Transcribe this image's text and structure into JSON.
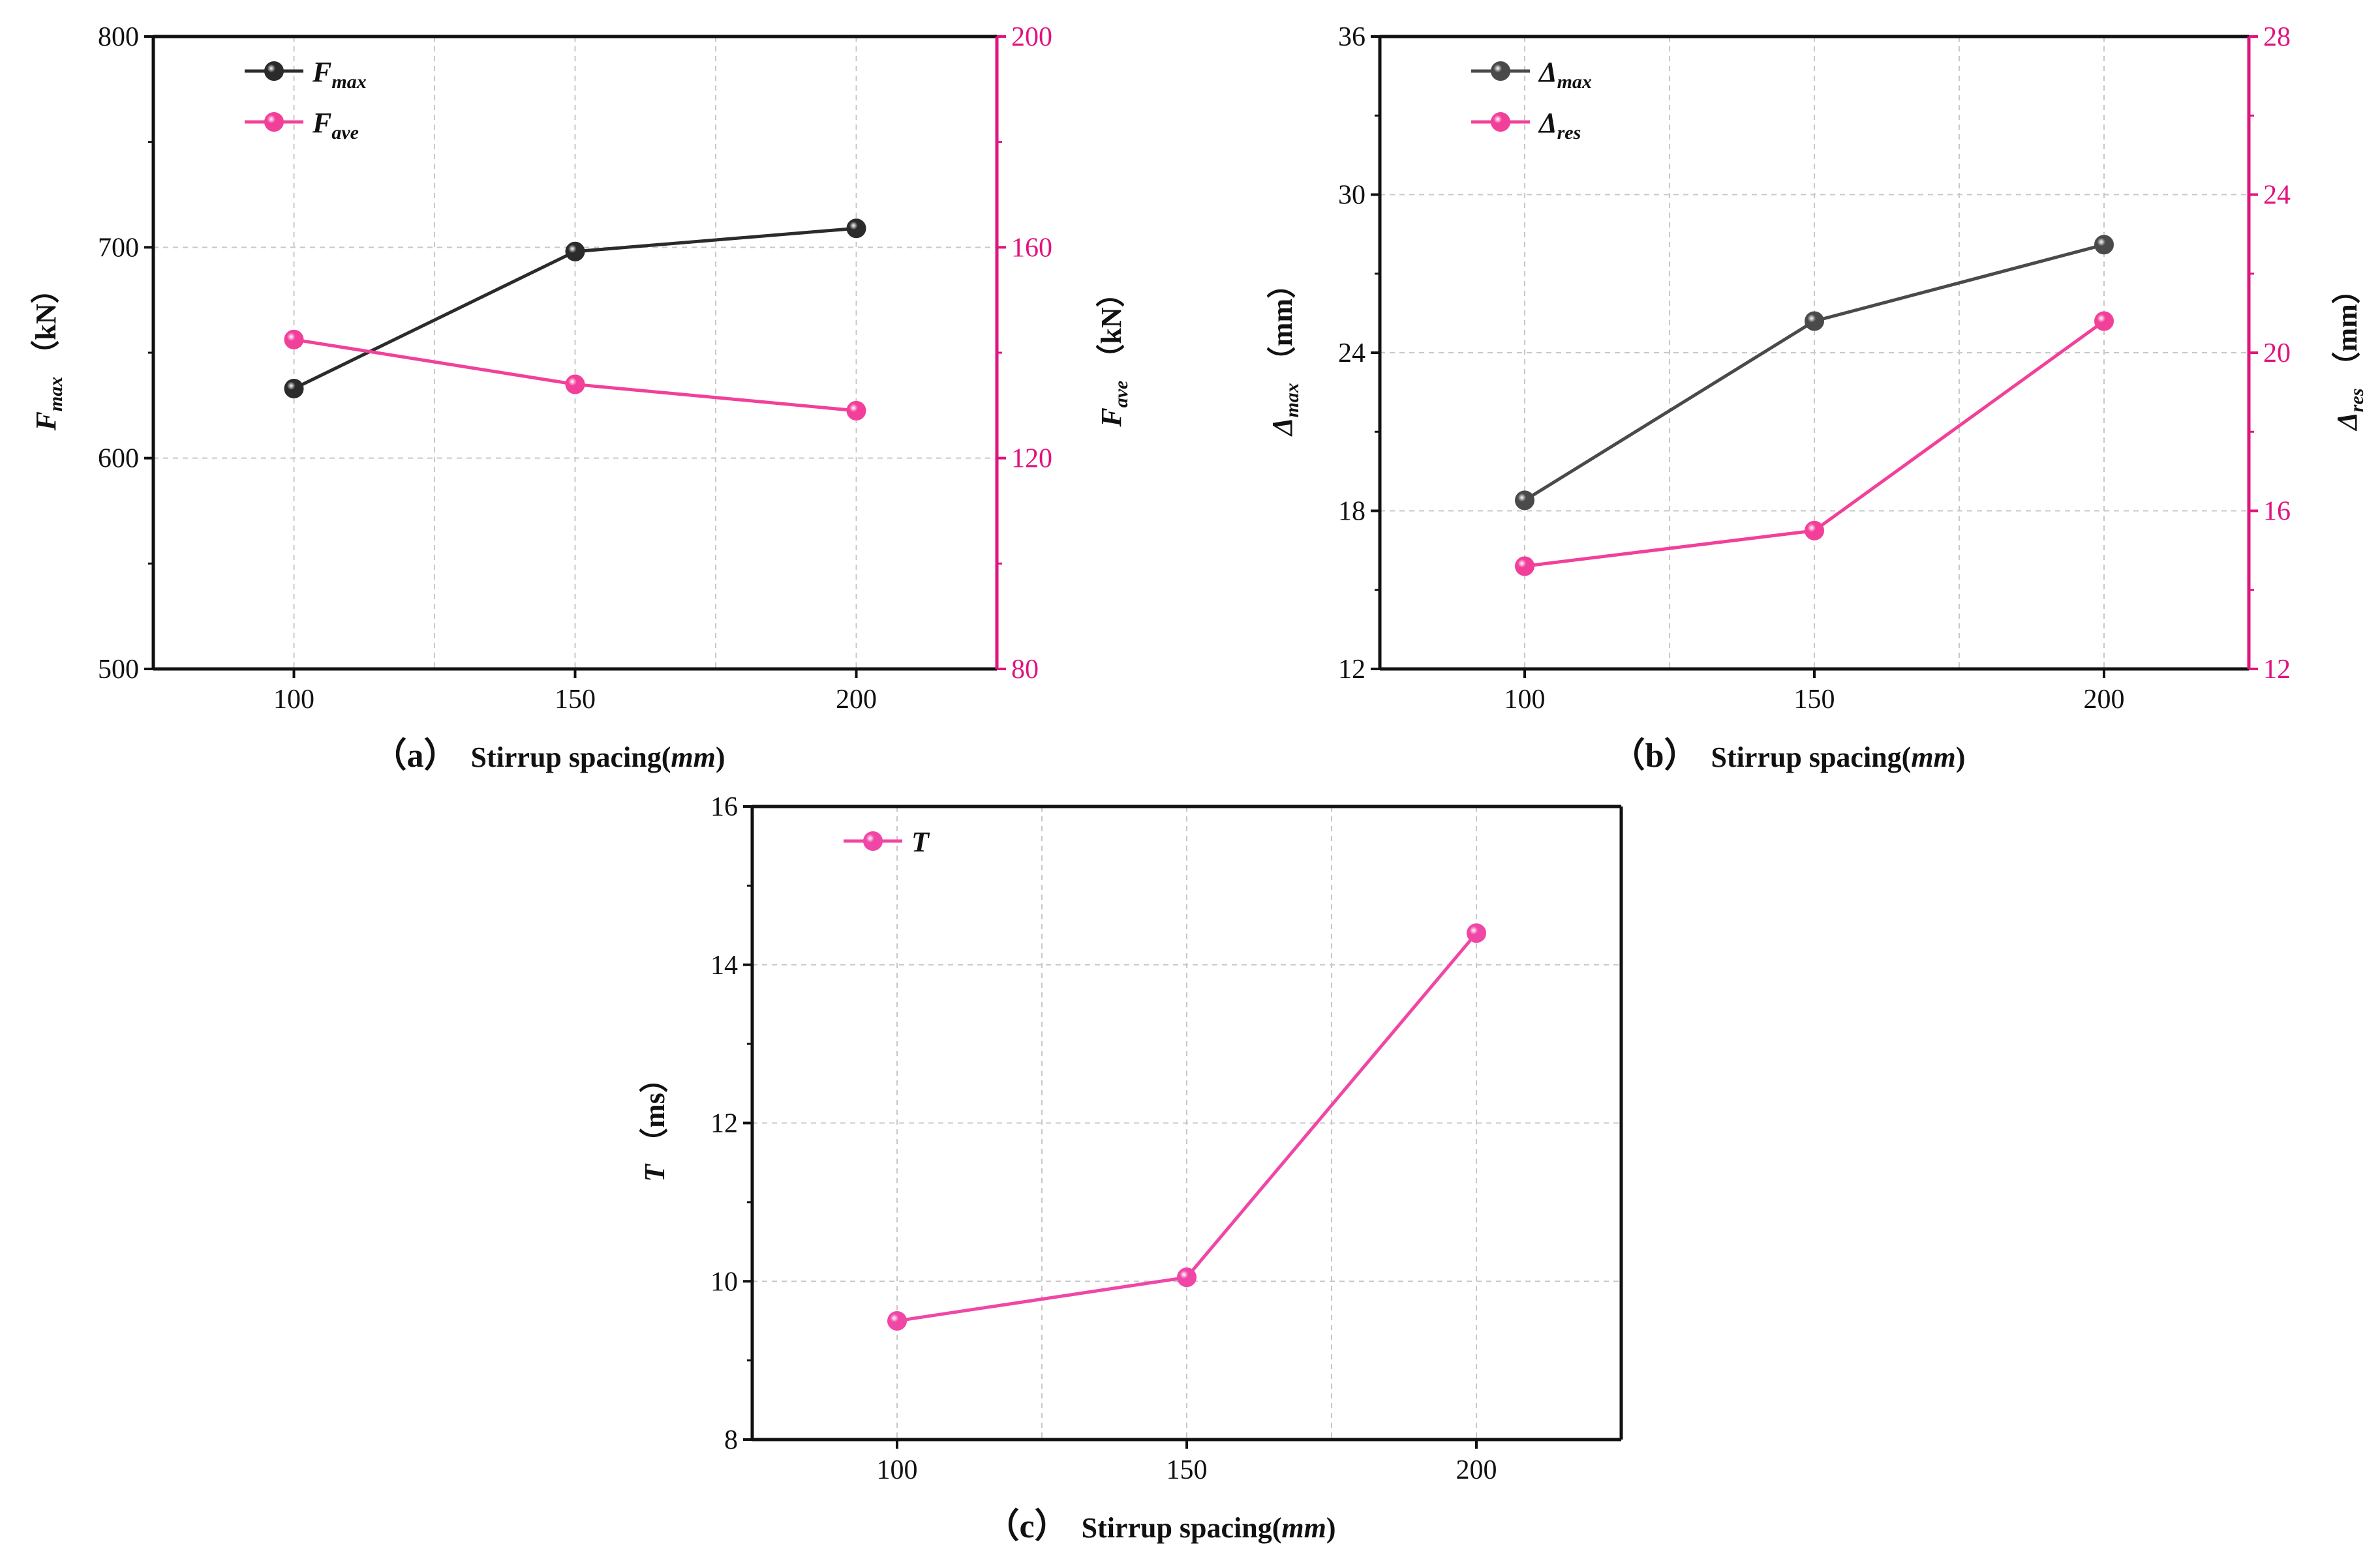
{
  "colors": {
    "black_series": "#2b2b2b",
    "gray_series": "#4a4a4a",
    "pink_axis": "#e0147e",
    "pink_series": "#f2409a",
    "pink_c": "#f046a6"
  },
  "chart_data": [
    {
      "id": "a",
      "type": "line",
      "caption_label": "（a）",
      "xlabel": "Stirrup spacing",
      "xlabel_unit": "mm",
      "x": [
        100,
        150,
        200
      ],
      "xlim": [
        75,
        225
      ],
      "xticks": [
        100,
        150,
        200
      ],
      "ylim": [
        500,
        800
      ],
      "yticks": [
        500,
        600,
        700,
        800
      ],
      "ylabel_main": "F",
      "ylabel_sub": "max",
      "ylabel_unit": "（kN）",
      "y2lim": [
        80,
        200
      ],
      "y2ticks": [
        80,
        120,
        160,
        200
      ],
      "y2label_main": "F",
      "y2label_sub": "ave",
      "y2label_unit": "（kN）",
      "grid": true,
      "legend_position": "top-left",
      "series": [
        {
          "name_main": "F",
          "name_sub": "max",
          "axis": "left",
          "color": "#2b2b2b",
          "values": [
            633,
            698,
            709
          ]
        },
        {
          "name_main": "F",
          "name_sub": "ave",
          "axis": "right",
          "color": "#f2409a",
          "values": [
            142.5,
            134,
            129
          ]
        }
      ]
    },
    {
      "id": "b",
      "type": "line",
      "caption_label": "（b）",
      "xlabel": "Stirrup spacing",
      "xlabel_unit": "mm",
      "x": [
        100,
        150,
        200
      ],
      "xlim": [
        75,
        225
      ],
      "xticks": [
        100,
        150,
        200
      ],
      "ylim": [
        12,
        36
      ],
      "yticks": [
        12,
        18,
        24,
        30,
        36
      ],
      "ylabel_main": "Δ",
      "ylabel_sub": "max",
      "ylabel_unit": "（mm）",
      "y2lim": [
        12,
        28
      ],
      "y2ticks": [
        12,
        16,
        20,
        24,
        28
      ],
      "y2label_main": "Δ",
      "y2label_sub": "res",
      "y2label_unit": "（mm）",
      "grid": true,
      "legend_position": "top-left",
      "series": [
        {
          "name_main": "Δ",
          "name_sub": "max",
          "axis": "left",
          "color": "#4a4a4a",
          "values": [
            18.4,
            25.2,
            28.1
          ]
        },
        {
          "name_main": "Δ",
          "name_sub": "res",
          "axis": "right",
          "color": "#f2409a",
          "values": [
            14.6,
            15.5,
            20.8
          ]
        }
      ]
    },
    {
      "id": "c",
      "type": "line",
      "caption_label": "（c）",
      "xlabel": "Stirrup spacing",
      "xlabel_unit": "mm",
      "x": [
        100,
        150,
        200
      ],
      "xlim": [
        75,
        225
      ],
      "xticks": [
        100,
        150,
        200
      ],
      "ylim": [
        8,
        16
      ],
      "yticks": [
        8,
        10,
        12,
        14,
        16
      ],
      "ylabel_main": "T",
      "ylabel_sub": "",
      "ylabel_unit": "（ms）",
      "grid": true,
      "legend_position": "top-left",
      "series": [
        {
          "name_main": "T",
          "name_sub": "",
          "axis": "left",
          "color": "#f046a6",
          "values": [
            9.5,
            10.05,
            14.4
          ]
        }
      ]
    }
  ]
}
